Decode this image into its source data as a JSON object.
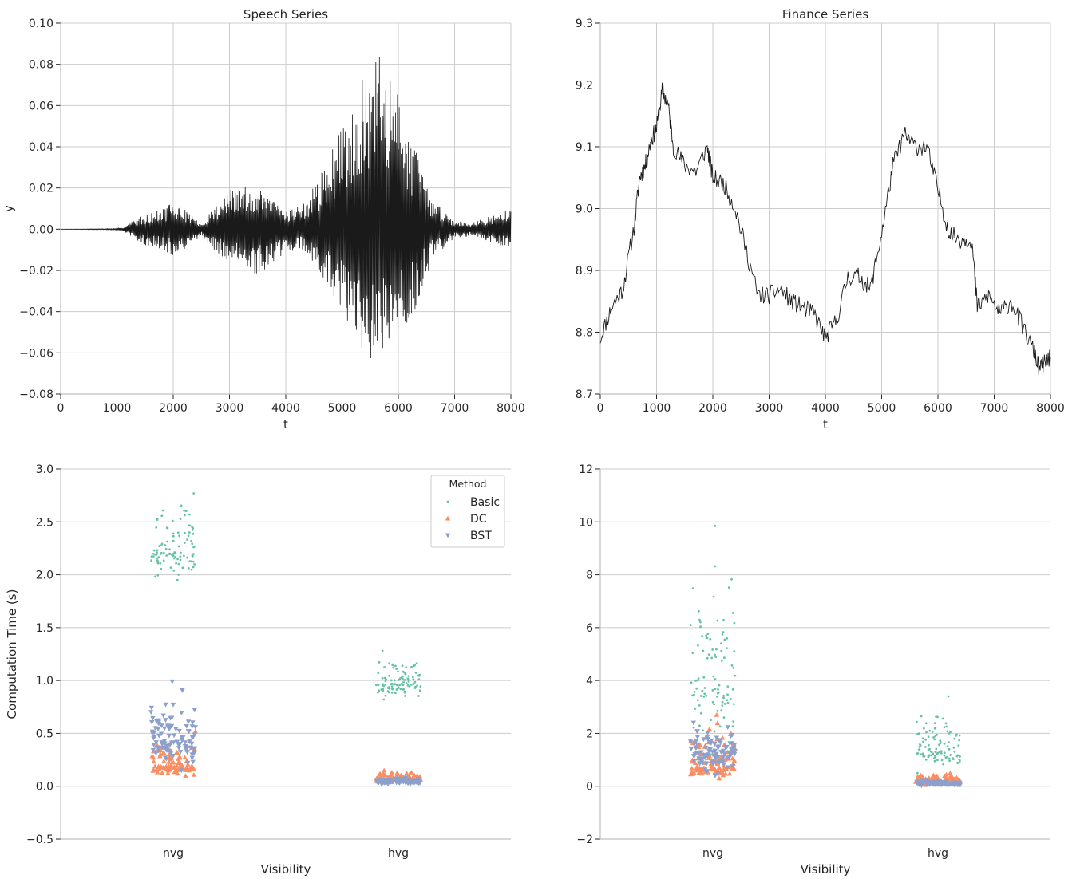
{
  "colors": {
    "grid": "#cccccc",
    "axis": "#bfbfbf",
    "line": "#1a1a1a",
    "basic": "#66c2a5",
    "dc": "#fc8d62",
    "bst": "#8da0cb"
  },
  "chart_data": [
    {
      "type": "line",
      "title": "Speech Series",
      "xlabel": "t",
      "ylabel": "y",
      "xlim": [
        0,
        8000
      ],
      "ylim": [
        -0.08,
        0.1
      ],
      "xticks": [
        0,
        1000,
        2000,
        3000,
        4000,
        5000,
        6000,
        7000,
        8000
      ],
      "xtick_labels": [
        "0",
        "1000",
        "2000",
        "3000",
        "4000",
        "5000",
        "6000",
        "7000",
        "8000"
      ],
      "yticks": [
        -0.08,
        -0.06,
        -0.04,
        -0.02,
        0.0,
        0.02,
        0.04,
        0.06,
        0.08,
        0.1
      ],
      "ytick_labels": [
        "−0.08",
        "−0.06",
        "−0.04",
        "−0.02",
        "0.00",
        "0.02",
        "0.04",
        "0.06",
        "0.08",
        "0.10"
      ],
      "grid": true,
      "envelope": [
        {
          "t": 0,
          "max": 0.0,
          "min": 0.0
        },
        {
          "t": 1000,
          "max": 0.0003,
          "min": -0.0003
        },
        {
          "t": 1100,
          "max": 0.001,
          "min": -0.001
        },
        {
          "t": 1400,
          "max": 0.006,
          "min": -0.007
        },
        {
          "t": 1800,
          "max": 0.01,
          "min": -0.01
        },
        {
          "t": 2000,
          "max": 0.013,
          "min": -0.014
        },
        {
          "t": 2300,
          "max": 0.008,
          "min": -0.009
        },
        {
          "t": 2500,
          "max": 0.002,
          "min": -0.003
        },
        {
          "t": 2650,
          "max": 0.009,
          "min": -0.009
        },
        {
          "t": 3000,
          "max": 0.019,
          "min": -0.016
        },
        {
          "t": 3400,
          "max": 0.022,
          "min": -0.024
        },
        {
          "t": 3700,
          "max": 0.015,
          "min": -0.018
        },
        {
          "t": 4000,
          "max": 0.01,
          "min": -0.011
        },
        {
          "t": 4300,
          "max": 0.012,
          "min": -0.01
        },
        {
          "t": 4600,
          "max": 0.025,
          "min": -0.022
        },
        {
          "t": 5000,
          "max": 0.05,
          "min": -0.04
        },
        {
          "t": 5400,
          "max": 0.075,
          "min": -0.062
        },
        {
          "t": 5650,
          "max": 0.085,
          "min": -0.066
        },
        {
          "t": 6000,
          "max": 0.068,
          "min": -0.058
        },
        {
          "t": 6300,
          "max": 0.04,
          "min": -0.04
        },
        {
          "t": 6600,
          "max": 0.015,
          "min": -0.015
        },
        {
          "t": 7000,
          "max": 0.004,
          "min": -0.004
        },
        {
          "t": 7400,
          "max": 0.004,
          "min": -0.004
        },
        {
          "t": 7800,
          "max": 0.008,
          "min": -0.008
        },
        {
          "t": 8000,
          "max": 0.01,
          "min": -0.009
        }
      ]
    },
    {
      "type": "line",
      "title": "Finance Series",
      "xlabel": "t",
      "ylabel": "",
      "xlim": [
        0,
        8000
      ],
      "ylim": [
        8.7,
        9.3
      ],
      "xticks": [
        0,
        1000,
        2000,
        3000,
        4000,
        5000,
        6000,
        7000,
        8000
      ],
      "xtick_labels": [
        "0",
        "1000",
        "2000",
        "3000",
        "4000",
        "5000",
        "6000",
        "7000",
        "8000"
      ],
      "yticks": [
        8.7,
        8.8,
        8.9,
        9.0,
        9.1,
        9.2,
        9.3
      ],
      "ytick_labels": [
        "8.7",
        "8.8",
        "8.9",
        "9.0",
        "9.1",
        "9.2",
        "9.3"
      ],
      "grid": true,
      "series": [
        {
          "values": [
            [
              0,
              8.79
            ],
            [
              200,
              8.84
            ],
            [
              400,
              8.87
            ],
            [
              600,
              8.97
            ],
            [
              700,
              9.05
            ],
            [
              800,
              9.07
            ],
            [
              900,
              9.11
            ],
            [
              1000,
              9.13
            ],
            [
              1100,
              9.19
            ],
            [
              1200,
              9.17
            ],
            [
              1300,
              9.1
            ],
            [
              1500,
              9.07
            ],
            [
              1700,
              9.06
            ],
            [
              1900,
              9.1
            ],
            [
              2000,
              9.05
            ],
            [
              2200,
              9.04
            ],
            [
              2400,
              9.0
            ],
            [
              2600,
              8.93
            ],
            [
              2800,
              8.86
            ],
            [
              3000,
              8.86
            ],
            [
              3200,
              8.87
            ],
            [
              3400,
              8.85
            ],
            [
              3600,
              8.84
            ],
            [
              3800,
              8.83
            ],
            [
              4000,
              8.79
            ],
            [
              4200,
              8.82
            ],
            [
              4400,
              8.89
            ],
            [
              4600,
              8.89
            ],
            [
              4800,
              8.87
            ],
            [
              5000,
              8.96
            ],
            [
              5200,
              9.07
            ],
            [
              5400,
              9.12
            ],
            [
              5600,
              9.1
            ],
            [
              5800,
              9.1
            ],
            [
              6000,
              9.03
            ],
            [
              6200,
              8.96
            ],
            [
              6400,
              8.95
            ],
            [
              6600,
              8.95
            ],
            [
              6700,
              8.84
            ],
            [
              6900,
              8.86
            ],
            [
              7100,
              8.83
            ],
            [
              7300,
              8.85
            ],
            [
              7500,
              8.81
            ],
            [
              7700,
              8.77
            ],
            [
              7800,
              8.74
            ],
            [
              7900,
              8.75
            ],
            [
              8000,
              8.76
            ]
          ]
        }
      ]
    },
    {
      "type": "scatter",
      "xlabel": "Visibility",
      "ylabel": "Computation Time (s)",
      "categories": [
        "nvg",
        "hvg"
      ],
      "ylim": [
        -0.5,
        3.0
      ],
      "yticks": [
        -0.5,
        0.0,
        0.5,
        1.0,
        1.5,
        2.0,
        2.5,
        3.0
      ],
      "ytick_labels": [
        "−0.5",
        "0.0",
        "0.5",
        "1.0",
        "1.5",
        "2.0",
        "2.5",
        "3.0"
      ],
      "grid": true,
      "legend": {
        "title": "Method",
        "position": "top-right",
        "entries": [
          "Basic",
          "DC",
          "BST"
        ]
      },
      "series": [
        {
          "name": "Basic",
          "marker": "circle",
          "points_per_category": 100,
          "center": {
            "nvg": 2.21,
            "hvg": 0.97
          },
          "min": {
            "nvg": 1.95,
            "hvg": 0.82
          },
          "max": {
            "nvg": 2.77,
            "hvg": 1.28
          }
        },
        {
          "name": "DC",
          "marker": "triangle-up",
          "points_per_category": 100,
          "center": {
            "nvg": 0.19,
            "hvg": 0.07
          },
          "min": {
            "nvg": 0.1,
            "hvg": 0.04
          },
          "max": {
            "nvg": 0.52,
            "hvg": 0.15
          }
        },
        {
          "name": "BST",
          "marker": "triangle-down",
          "points_per_category": 100,
          "center": {
            "nvg": 0.42,
            "hvg": 0.04
          },
          "min": {
            "nvg": 0.15,
            "hvg": 0.02
          },
          "max": {
            "nvg": 0.99,
            "hvg": 0.08
          }
        }
      ]
    },
    {
      "type": "scatter",
      "xlabel": "Visibility",
      "ylabel": "",
      "categories": [
        "nvg",
        "hvg"
      ],
      "ylim": [
        -2,
        12
      ],
      "yticks": [
        -2,
        0,
        2,
        4,
        6,
        8,
        10,
        12
      ],
      "ytick_labels": [
        "−2",
        "0",
        "2",
        "4",
        "6",
        "8",
        "10",
        "12"
      ],
      "grid": true,
      "series": [
        {
          "name": "Basic",
          "marker": "circle",
          "points_per_category": 100,
          "center": {
            "nvg": 3.8,
            "hvg": 1.4
          },
          "min": {
            "nvg": 1.2,
            "hvg": 0.5
          },
          "max": {
            "nvg": 9.85,
            "hvg": 3.4
          }
        },
        {
          "name": "DC",
          "marker": "triangle-up",
          "points_per_category": 100,
          "center": {
            "nvg": 0.7,
            "hvg": 0.2
          },
          "min": {
            "nvg": 0.3,
            "hvg": 0.05
          },
          "max": {
            "nvg": 2.7,
            "hvg": 0.5
          }
        },
        {
          "name": "BST",
          "marker": "triangle-down",
          "points_per_category": 100,
          "center": {
            "nvg": 1.3,
            "hvg": 0.1
          },
          "min": {
            "nvg": 0.4,
            "hvg": 0.02
          },
          "max": {
            "nvg": 2.4,
            "hvg": 0.25
          }
        }
      ]
    }
  ]
}
